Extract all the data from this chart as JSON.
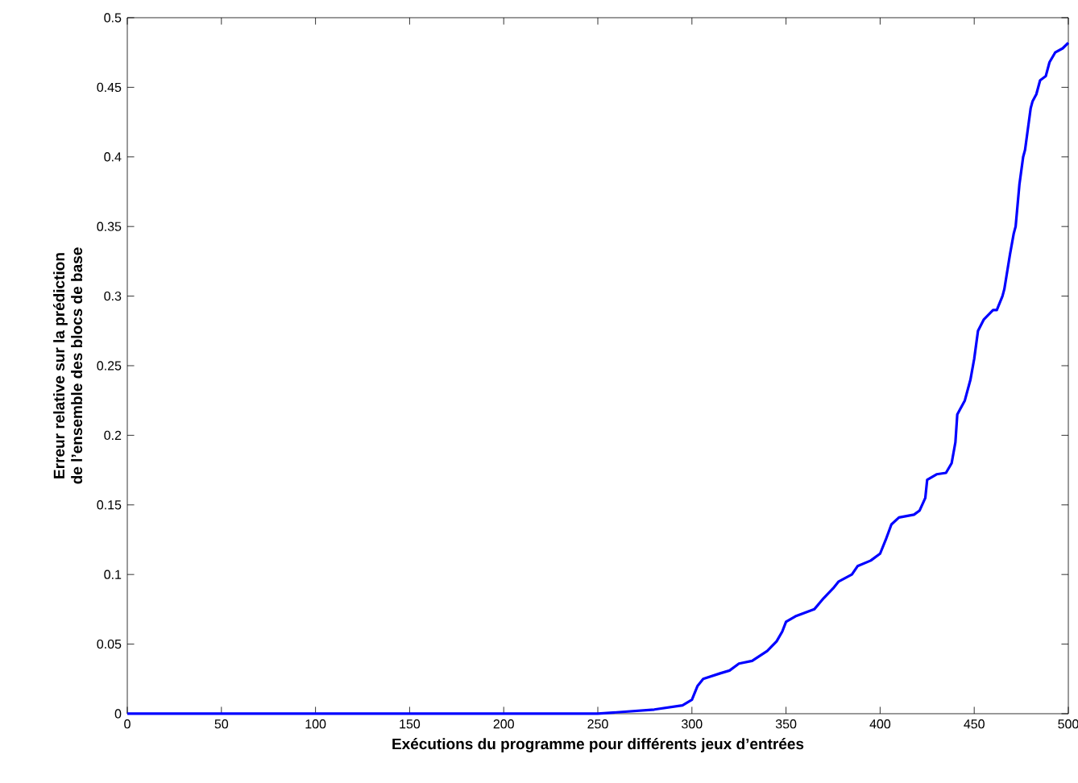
{
  "chart_data": {
    "type": "line",
    "xlabel": "Exécutions du programme pour différents jeux d’entrées",
    "ylabel": "Erreur relative sur la prédiction\nde l’ensemble des blocs de base",
    "xlim": [
      0,
      500
    ],
    "ylim": [
      0,
      0.5
    ],
    "xticks": [
      0,
      50,
      100,
      150,
      200,
      250,
      300,
      350,
      400,
      450,
      500
    ],
    "yticks": [
      0,
      0.05,
      0.1,
      0.15,
      0.2,
      0.25,
      0.3,
      0.35,
      0.4,
      0.45,
      0.5
    ],
    "marker": "none",
    "line_style": "solid",
    "series": [
      {
        "color": "#0000ff",
        "x": [
          0,
          250,
          260,
          280,
          295,
          300,
          303,
          306,
          315,
          320,
          325,
          332,
          340,
          345,
          348,
          350,
          355,
          365,
          370,
          375,
          378,
          385,
          388,
          395,
          400,
          403,
          406,
          410,
          418,
          421,
          424,
          425,
          430,
          435,
          438,
          440,
          441,
          445,
          448,
          450,
          452,
          455,
          460,
          462,
          465,
          466,
          469,
          471,
          472,
          474,
          476,
          477,
          480,
          481,
          483,
          485,
          488,
          490,
          493,
          497,
          500
        ],
        "values": [
          0,
          0,
          0.001,
          0.003,
          0.006,
          0.01,
          0.02,
          0.025,
          0.029,
          0.031,
          0.036,
          0.038,
          0.045,
          0.052,
          0.059,
          0.066,
          0.07,
          0.075,
          0.083,
          0.09,
          0.095,
          0.1,
          0.106,
          0.11,
          0.115,
          0.125,
          0.136,
          0.141,
          0.143,
          0.146,
          0.155,
          0.168,
          0.172,
          0.173,
          0.18,
          0.195,
          0.215,
          0.225,
          0.24,
          0.255,
          0.275,
          0.283,
          0.29,
          0.29,
          0.3,
          0.305,
          0.33,
          0.345,
          0.35,
          0.38,
          0.4,
          0.405,
          0.435,
          0.44,
          0.445,
          0.455,
          0.458,
          0.468,
          0.475,
          0.478,
          0.482
        ]
      }
    ]
  }
}
